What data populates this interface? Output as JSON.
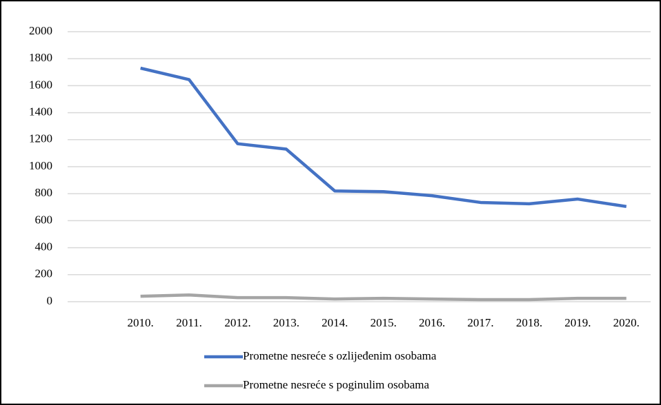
{
  "chart_data": {
    "type": "line",
    "categories": [
      null,
      "2010.",
      "2011.",
      "2012.",
      "2013.",
      "2014.",
      "2015.",
      "2016.",
      "2017.",
      "2018.",
      "2019.",
      "2020."
    ],
    "series": [
      {
        "name": "Prometne nesreće s ozlijeđenim osobama",
        "color": "#4472c4",
        "values": [
          null,
          1730,
          1645,
          1170,
          1130,
          820,
          815,
          785,
          735,
          725,
          760,
          705
        ]
      },
      {
        "name": "Prometne nesreće s poginulim osobama",
        "color": "#a5a5a5",
        "values": [
          null,
          40,
          50,
          30,
          30,
          20,
          25,
          20,
          15,
          15,
          25,
          25
        ]
      }
    ],
    "ylim": [
      0,
      2000
    ],
    "yticks": [
      0,
      200,
      400,
      600,
      800,
      1000,
      1200,
      1400,
      1600,
      1800,
      2000
    ],
    "grid": true,
    "legend": "bottom"
  }
}
